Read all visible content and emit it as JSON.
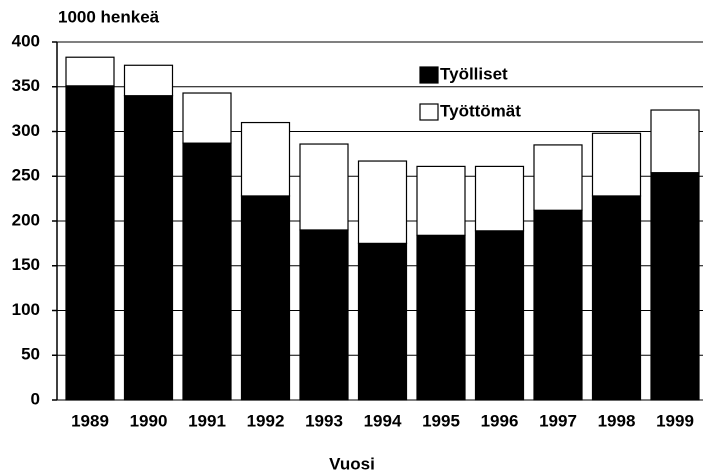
{
  "chart_data": {
    "type": "stacked_bar",
    "y_axis_label": "1000 henkeä",
    "x_axis_label": "Vuosi",
    "categories": [
      "1989",
      "1990",
      "1991",
      "1992",
      "1993",
      "1994",
      "1995",
      "1996",
      "1997",
      "1998",
      "1999"
    ],
    "series": [
      {
        "name": "Työlliset",
        "color": "#000000",
        "values": [
          351,
          340,
          287,
          228,
          190,
          175,
          184,
          189,
          212,
          228,
          254
        ]
      },
      {
        "name": "Työttömät",
        "color": "#ffffff",
        "values": [
          32,
          34,
          56,
          82,
          96,
          92,
          77,
          72,
          73,
          70,
          70
        ]
      }
    ],
    "ylim": [
      0,
      400
    ],
    "yticks": [
      0,
      50,
      100,
      150,
      200,
      250,
      300,
      350,
      400
    ],
    "grid": true
  }
}
